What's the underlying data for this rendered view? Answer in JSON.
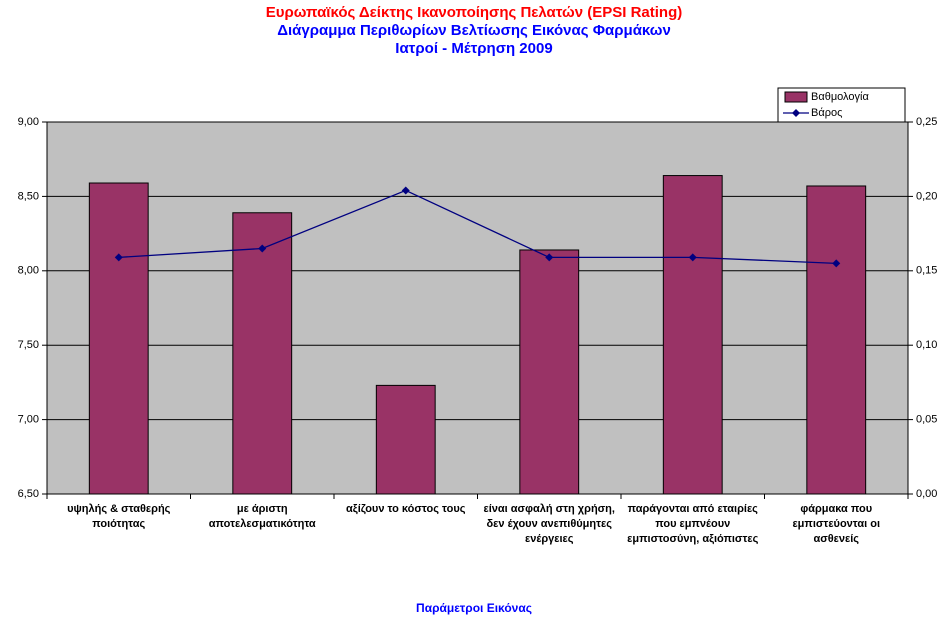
{
  "chart_data": {
    "type": "bar_line",
    "title": "Ευρωπαϊκός Δείκτης Ικανοποίησης Πελατών (EPSI Rating)",
    "subtitle": [
      "Διάγραμμα Περιθωρίων Βελτίωσης Εικόνας Φαρμάκων",
      "Ιατροί - Μέτρηση 2009"
    ],
    "xlabel": "Παράμετροι Εικόνας",
    "categories": [
      "υψηλής & σταθερής ποιότητας",
      "με άριστη αποτελεσματικότητα",
      "αξίζουν το κόστος τους",
      "είναι ασφαλή στη χρήση, δεν έχουν ανεπιθύμητες ενέργειες",
      "παράγονται από εταιρίες που εμπνέουν εμπιστοσύνη, αξιόπιστες",
      "φάρμακα που εμπιστεύονται οι ασθενείς"
    ],
    "series": [
      {
        "name": "Βαθμολογία",
        "type": "bar",
        "color": "#993366",
        "values": [
          8.59,
          8.39,
          7.23,
          8.14,
          8.64,
          8.57
        ]
      },
      {
        "name": "Βάρος",
        "type": "line",
        "axis": "y2",
        "color": "#000080",
        "values": [
          0.159,
          0.165,
          0.204,
          0.159,
          0.159,
          0.155
        ]
      }
    ],
    "ylim": [
      6.5,
      9.0
    ],
    "yticks": [
      {
        "value": 6.5,
        "label": "6,50"
      },
      {
        "value": 7.0,
        "label": "7,00"
      },
      {
        "value": 7.5,
        "label": "7,50"
      },
      {
        "value": 8.0,
        "label": "8,00"
      },
      {
        "value": 8.5,
        "label": "8,50"
      },
      {
        "value": 9.0,
        "label": "9,00"
      }
    ],
    "y2lim": [
      0,
      0.25
    ],
    "y2ticks": [
      {
        "value": 0,
        "label": "0,00"
      },
      {
        "value": 0.05,
        "label": "0,05"
      },
      {
        "value": 0.1,
        "label": "0,10"
      },
      {
        "value": 0.15,
        "label": "0,15"
      },
      {
        "value": 0.2,
        "label": "0,20"
      },
      {
        "value": 0.25,
        "label": "0,25"
      }
    ],
    "grid": true,
    "legend": "top-right"
  }
}
